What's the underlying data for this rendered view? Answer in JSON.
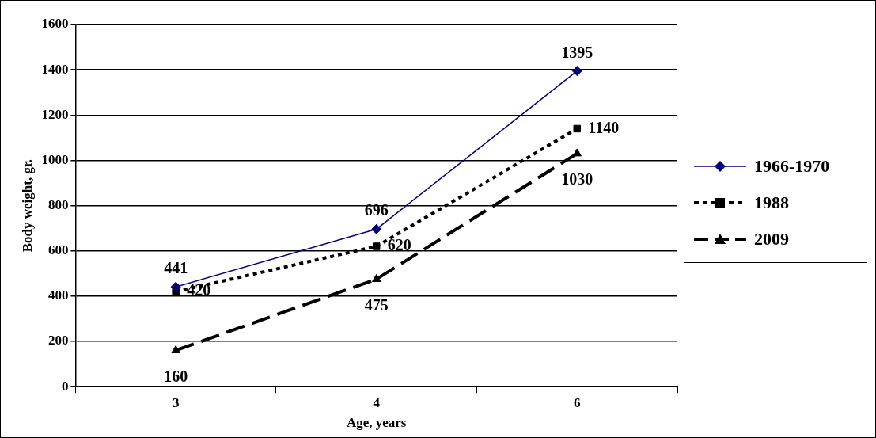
{
  "chart_data": {
    "type": "line",
    "xlabel": "Age, years",
    "ylabel": "Body weight, gr.",
    "categories": [
      "3",
      "4",
      "6"
    ],
    "series": [
      {
        "name": "1966-1970",
        "color": "#000080",
        "values": [
          441,
          696,
          1395
        ],
        "marker": "diamond",
        "line_style": "solid"
      },
      {
        "name": "1988",
        "color": "#000000",
        "values": [
          420,
          620,
          1140
        ],
        "marker": "square",
        "line_style": "dotted"
      },
      {
        "name": "2009",
        "color": "#000000",
        "values": [
          160,
          475,
          1030
        ],
        "marker": "triangle",
        "line_style": "dashed"
      }
    ],
    "ylim": [
      0,
      1600
    ],
    "yticks": [
      0,
      200,
      400,
      600,
      800,
      1000,
      1200,
      1400,
      1600
    ],
    "grid": "y",
    "legend": "right",
    "data_labels": true
  }
}
